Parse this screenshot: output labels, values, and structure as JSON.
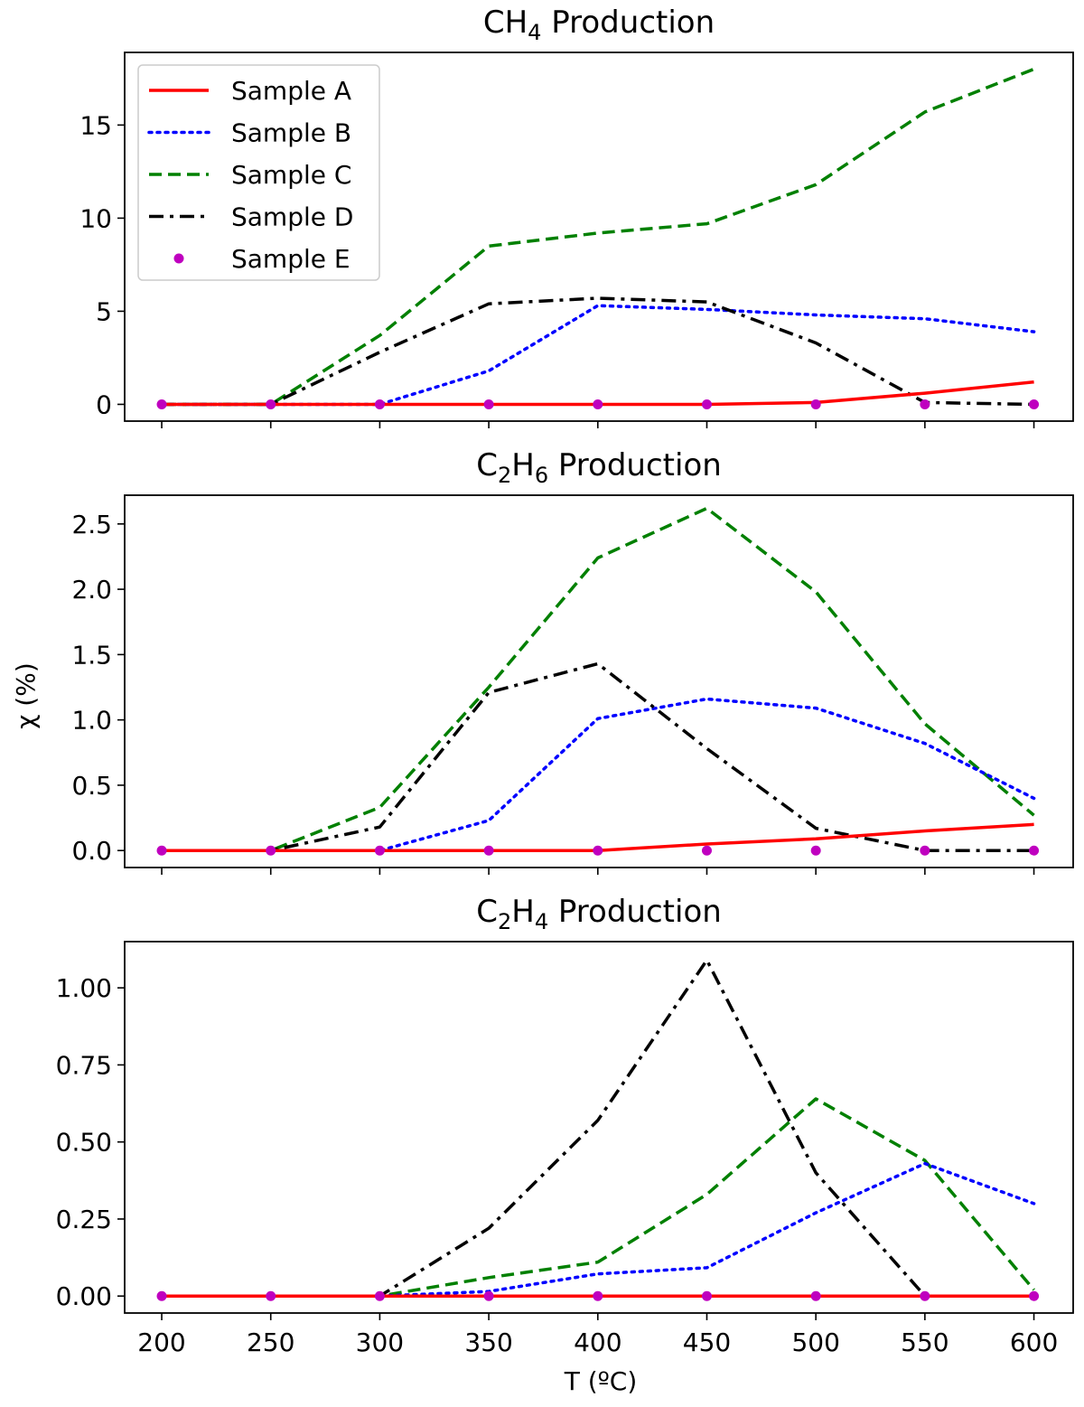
{
  "figure": {
    "ylabel": "χ (%)",
    "xlabel": "T (ºC)"
  },
  "colors": {
    "sample_a": "#ff0000",
    "sample_b": "#0000ff",
    "sample_c": "#008000",
    "sample_d": "#000000",
    "sample_e": "#bf00bf"
  },
  "chart_data": [
    {
      "type": "line",
      "title_main": "CH",
      "title_sub": "4",
      "title_rest": " Production",
      "x": [
        200,
        250,
        300,
        350,
        400,
        450,
        500,
        550,
        600
      ],
      "xlim": [
        183,
        618
      ],
      "ylim": [
        -0.9,
        18.9
      ],
      "yticks": [
        0,
        5,
        10,
        15
      ],
      "ytick_labels": [
        "0",
        "5",
        "10",
        "15"
      ],
      "xtick_labels": [],
      "legend": {
        "position": "upper-left"
      },
      "series": [
        {
          "name": "Sample A",
          "style": "solid",
          "values": [
            0,
            0,
            0,
            0,
            0,
            0,
            0.1,
            0.6,
            1.2
          ]
        },
        {
          "name": "Sample B",
          "style": "dotted",
          "values": [
            0,
            0,
            0,
            1.8,
            5.3,
            5.1,
            4.8,
            4.6,
            3.9
          ]
        },
        {
          "name": "Sample C",
          "style": "dashed",
          "values": [
            0,
            0,
            3.7,
            8.5,
            9.2,
            9.7,
            11.8,
            15.7,
            18.0
          ]
        },
        {
          "name": "Sample D",
          "style": "dashdot",
          "values": [
            0,
            0,
            2.8,
            5.4,
            5.7,
            5.5,
            3.3,
            0.1,
            0
          ]
        },
        {
          "name": "Sample E",
          "style": "markers",
          "values": [
            0,
            0,
            0,
            0,
            0,
            0,
            0,
            0,
            0
          ]
        }
      ]
    },
    {
      "type": "line",
      "title_main": "C",
      "title_sub": "2",
      "title_mid": "H",
      "title_sub2": "6",
      "title_rest": " Production",
      "x": [
        200,
        250,
        300,
        350,
        400,
        450,
        500,
        550,
        600
      ],
      "xlim": [
        183,
        618
      ],
      "ylim": [
        -0.13,
        2.72
      ],
      "yticks": [
        0,
        0.5,
        1.0,
        1.5,
        2.0,
        2.5
      ],
      "ytick_labels": [
        "0.0",
        "0.5",
        "1.0",
        "1.5",
        "2.0",
        "2.5"
      ],
      "xtick_labels": [],
      "series": [
        {
          "name": "Sample A",
          "style": "solid",
          "values": [
            0,
            0,
            0,
            0,
            0,
            0.05,
            0.09,
            0.15,
            0.2
          ]
        },
        {
          "name": "Sample B",
          "style": "dotted",
          "values": [
            0,
            0,
            0,
            0.23,
            1.01,
            1.16,
            1.09,
            0.82,
            0.4
          ]
        },
        {
          "name": "Sample C",
          "style": "dashed",
          "values": [
            0,
            0,
            0.33,
            1.25,
            2.24,
            2.62,
            1.98,
            0.97,
            0.27
          ]
        },
        {
          "name": "Sample D",
          "style": "dashdot",
          "values": [
            0,
            0,
            0.18,
            1.21,
            1.43,
            0.78,
            0.17,
            0,
            0
          ]
        },
        {
          "name": "Sample E",
          "style": "markers",
          "values": [
            0,
            0,
            0,
            0,
            0,
            0,
            0,
            0,
            0
          ]
        }
      ]
    },
    {
      "type": "line",
      "title_main": "C",
      "title_sub": "2",
      "title_mid": "H",
      "title_sub2": "4",
      "title_rest": " Production",
      "x": [
        200,
        250,
        300,
        350,
        400,
        450,
        500,
        550,
        600
      ],
      "xlim": [
        183,
        618
      ],
      "ylim": [
        -0.055,
        1.15
      ],
      "yticks": [
        0,
        0.25,
        0.5,
        0.75,
        1.0
      ],
      "ytick_labels": [
        "0.00",
        "0.25",
        "0.50",
        "0.75",
        "1.00"
      ],
      "xtick_labels": [
        "200",
        "250",
        "300",
        "350",
        "400",
        "450",
        "500",
        "550",
        "600"
      ],
      "series": [
        {
          "name": "Sample A",
          "style": "solid",
          "values": [
            0,
            0,
            0,
            0,
            0,
            0,
            0,
            0,
            0
          ]
        },
        {
          "name": "Sample B",
          "style": "dotted",
          "values": [
            0,
            0,
            0,
            0.015,
            0.072,
            0.092,
            0.27,
            0.43,
            0.3
          ]
        },
        {
          "name": "Sample C",
          "style": "dashed",
          "values": [
            0,
            0,
            0,
            0.06,
            0.11,
            0.33,
            0.64,
            0.44,
            0.02
          ]
        },
        {
          "name": "Sample D",
          "style": "dashdot",
          "values": [
            0,
            0,
            0,
            0.22,
            0.57,
            1.09,
            0.4,
            0,
            0
          ]
        },
        {
          "name": "Sample E",
          "style": "markers",
          "values": [
            0,
            0,
            0,
            0,
            0,
            0,
            0,
            0,
            0
          ]
        }
      ]
    }
  ]
}
